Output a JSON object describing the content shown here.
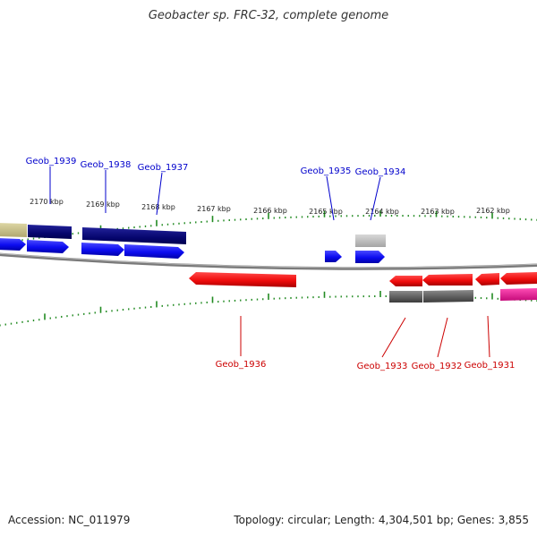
{
  "title": "Geobacter sp. FRC-32, complete genome",
  "footer": {
    "accession": "Accession: NC_011979",
    "summary": "Topology: circular; Length: 4,304,501 bp; Genes: 3,855"
  },
  "colors": {
    "forward_label": "#0000cc",
    "reverse_label": "#cc0000",
    "tick": "#228b22",
    "backbone": "#808080",
    "gene_forward": "#1414ff",
    "gene_reverse": "#ff1414",
    "feature_navy": "#0a0a78",
    "feature_olive": "#cfc890",
    "feature_gray": "#6a6a6a",
    "feature_lightgray": "#c4c4c4",
    "feature_pink": "#ee1493"
  },
  "scale_labels": [
    {
      "text": "2170 kbp",
      "kbp": 2170
    },
    {
      "text": "2169 kbp",
      "kbp": 2169
    },
    {
      "text": "2168 kbp",
      "kbp": 2168
    },
    {
      "text": "2167 kbp",
      "kbp": 2167
    },
    {
      "text": "2166 kbp",
      "kbp": 2166
    },
    {
      "text": "2165 kbp",
      "kbp": 2165
    },
    {
      "text": "2164 kbp",
      "kbp": 2164
    },
    {
      "text": "2163 kbp",
      "kbp": 2163
    },
    {
      "text": "2162 kbp",
      "kbp": 2162
    }
  ],
  "forward_labels": [
    "Geob_1939",
    "Geob_1938",
    "Geob_1937",
    "Geob_1935",
    "Geob_1934"
  ],
  "reverse_labels": [
    "Geob_1936",
    "Geob_1933",
    "Geob_1932",
    "Geob_1931"
  ]
}
